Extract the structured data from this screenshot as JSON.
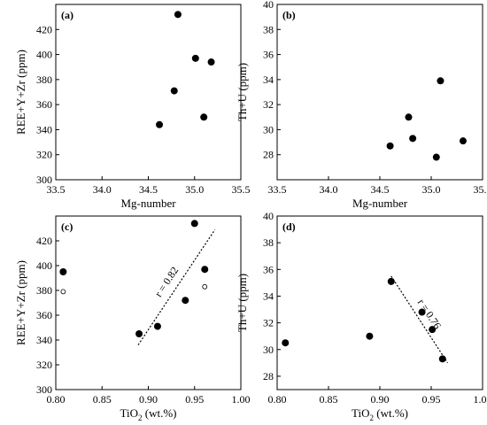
{
  "chart_data": [
    {
      "panel_label": "(a)",
      "type": "scatter",
      "xlabel": "Mg-number",
      "ylabel": "REE+Y+Zr (ppm)",
      "xlim": [
        33.5,
        35.5
      ],
      "ylim": [
        300,
        440
      ],
      "xticks": [
        "33.5",
        "34.0",
        "34.5",
        "35.0",
        "35.5"
      ],
      "yticks": [
        "300",
        "320",
        "340",
        "360",
        "380",
        "400",
        "420"
      ],
      "series": [
        {
          "marker": "filled",
          "x": [
            34.62,
            34.78,
            34.82,
            35.01,
            35.1,
            35.18
          ],
          "y": [
            344,
            371,
            432,
            397,
            350,
            394
          ]
        }
      ]
    },
    {
      "panel_label": "(b)",
      "type": "scatter",
      "xlabel": "Mg-number",
      "ylabel": "Th+U (ppm)",
      "xlim": [
        33.5,
        35.5
      ],
      "ylim": [
        26,
        40
      ],
      "xticks": [
        "33.5",
        "34.0",
        "34.5",
        "35.0",
        "35.5"
      ],
      "yticks": [
        "28",
        "30",
        "32",
        "34",
        "36",
        "38",
        "40"
      ],
      "series": [
        {
          "marker": "filled",
          "x": [
            34.6,
            34.78,
            34.82,
            35.05,
            35.09,
            35.31
          ],
          "y": [
            28.7,
            31.0,
            29.3,
            27.8,
            33.9,
            29.1
          ]
        }
      ]
    },
    {
      "panel_label": "(c)",
      "type": "scatter",
      "xlabel": "TiO2 (wt.%)",
      "xlabel_main": "TiO",
      "xlabel_sub": "2",
      "xlabel_tail": " (wt.%)",
      "ylabel": "REE+Y+Zr (ppm)",
      "xlim": [
        0.8,
        1.0
      ],
      "ylim": [
        300,
        440
      ],
      "xticks": [
        "0.80",
        "0.85",
        "0.90",
        "0.95",
        "1.00"
      ],
      "yticks": [
        "300",
        "320",
        "340",
        "360",
        "380",
        "400",
        "420"
      ],
      "series": [
        {
          "marker": "filled",
          "x": [
            0.808,
            0.89,
            0.91,
            0.94,
            0.95,
            0.961
          ],
          "y": [
            395,
            345,
            351,
            372,
            434,
            397
          ]
        },
        {
          "marker": "open",
          "x": [
            0.808,
            0.961
          ],
          "y": [
            379,
            383
          ]
        }
      ],
      "trendline": {
        "x": [
          0.889,
          0.972
        ],
        "y": [
          336,
          429
        ]
      },
      "annotation": "r = 0.82"
    },
    {
      "panel_label": "(d)",
      "type": "scatter",
      "xlabel": "TiO2 (wt.%)",
      "xlabel_main": "TiO",
      "xlabel_sub": "2",
      "xlabel_tail": " (wt.%)",
      "ylabel": "Th+U (ppm)",
      "xlim": [
        0.8,
        1.0
      ],
      "ylim": [
        27,
        40
      ],
      "xticks": [
        "0.80",
        "0.85",
        "0.90",
        "0.95",
        "1.00"
      ],
      "yticks": [
        "28",
        "30",
        "32",
        "34",
        "36",
        "38",
        "40"
      ],
      "series": [
        {
          "marker": "filled",
          "x": [
            0.808,
            0.89,
            0.911,
            0.941,
            0.951,
            0.961
          ],
          "y": [
            30.5,
            31.0,
            35.1,
            32.8,
            31.5,
            29.3
          ]
        }
      ],
      "trendline": {
        "x": [
          0.911,
          0.966
        ],
        "y": [
          35.5,
          29.0
        ]
      },
      "annotation": "r = 0.76"
    }
  ]
}
